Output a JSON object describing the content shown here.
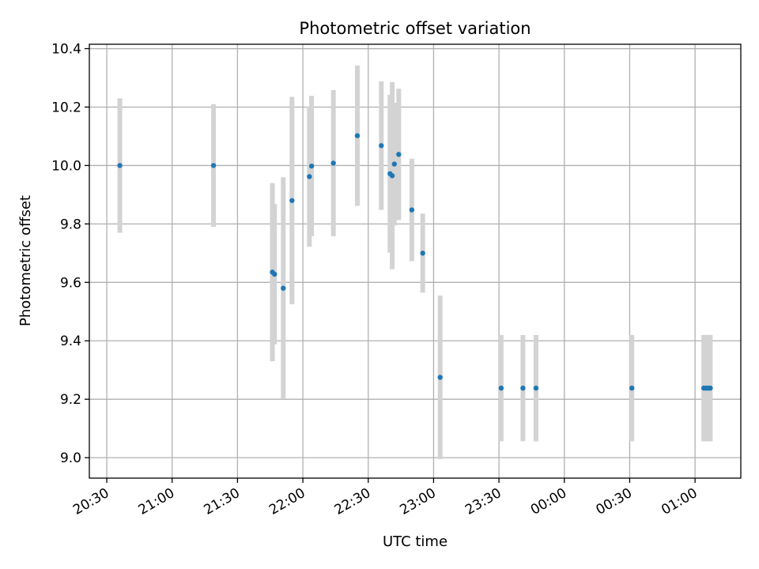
{
  "chart_data": {
    "type": "scatter",
    "title": "Photometric offset variation",
    "xlabel": "UTC time",
    "ylabel": "Photometric offset",
    "x_axis_kind": "time",
    "xlim": [
      "2000-01-01T20:22:00",
      "2000-01-02T01:21:00"
    ],
    "ylim": [
      8.93,
      10.415
    ],
    "grid": true,
    "x_ticks": [
      {
        "t": "2000-01-01T20:30:00",
        "label": "20:30"
      },
      {
        "t": "2000-01-01T21:00:00",
        "label": "21:00"
      },
      {
        "t": "2000-01-01T21:30:00",
        "label": "21:30"
      },
      {
        "t": "2000-01-01T22:00:00",
        "label": "22:00"
      },
      {
        "t": "2000-01-01T22:30:00",
        "label": "22:30"
      },
      {
        "t": "2000-01-01T23:00:00",
        "label": "23:00"
      },
      {
        "t": "2000-01-01T23:30:00",
        "label": "23:30"
      },
      {
        "t": "2000-01-02T00:00:00",
        "label": "00:00"
      },
      {
        "t": "2000-01-02T00:30:00",
        "label": "00:30"
      },
      {
        "t": "2000-01-02T01:00:00",
        "label": "01:00"
      }
    ],
    "y_ticks": [
      {
        "v": 9.0,
        "label": "9.0"
      },
      {
        "v": 9.2,
        "label": "9.2"
      },
      {
        "v": 9.4,
        "label": "9.4"
      },
      {
        "v": 9.6,
        "label": "9.6"
      },
      {
        "v": 9.8,
        "label": "9.8"
      },
      {
        "v": 10.0,
        "label": "10.0"
      },
      {
        "v": 10.2,
        "label": "10.2"
      },
      {
        "v": 10.4,
        "label": "10.4"
      }
    ],
    "marker_color": "#1f77b4",
    "errorbar_color": "#d3d3d3",
    "points": [
      {
        "t": "2000-01-01T20:36:00",
        "y": 10.0,
        "err": 0.23
      },
      {
        "t": "2000-01-01T21:19:00",
        "y": 10.0,
        "err": 0.21
      },
      {
        "t": "2000-01-01T21:46:00",
        "y": 9.635,
        "err": 0.305
      },
      {
        "t": "2000-01-01T21:47:00",
        "y": 9.628,
        "err": 0.24
      },
      {
        "t": "2000-01-01T21:51:00",
        "y": 9.58,
        "err": 0.38
      },
      {
        "t": "2000-01-01T21:55:00",
        "y": 9.88,
        "err": 0.355
      },
      {
        "t": "2000-01-01T22:03:00",
        "y": 9.962,
        "err": 0.24
      },
      {
        "t": "2000-01-01T22:04:00",
        "y": 9.998,
        "err": 0.24
      },
      {
        "t": "2000-01-01T22:14:00",
        "y": 10.008,
        "err": 0.25
      },
      {
        "t": "2000-01-01T22:25:00",
        "y": 10.102,
        "err": 0.24
      },
      {
        "t": "2000-01-01T22:36:00",
        "y": 10.068,
        "err": 0.22
      },
      {
        "t": "2000-01-01T22:40:00",
        "y": 9.972,
        "err": 0.27
      },
      {
        "t": "2000-01-01T22:41:00",
        "y": 9.965,
        "err": 0.32
      },
      {
        "t": "2000-01-01T22:42:00",
        "y": 10.005,
        "err": 0.21
      },
      {
        "t": "2000-01-01T22:44:00",
        "y": 10.038,
        "err": 0.225
      },
      {
        "t": "2000-01-01T22:50:00",
        "y": 9.848,
        "err": 0.175
      },
      {
        "t": "2000-01-01T22:55:00",
        "y": 9.7,
        "err": 0.135
      },
      {
        "t": "2000-01-01T23:03:00",
        "y": 9.275,
        "err": 0.28
      },
      {
        "t": "2000-01-01T23:31:00",
        "y": 9.238,
        "err": 0.182
      },
      {
        "t": "2000-01-01T23:41:00",
        "y": 9.238,
        "err": 0.182
      },
      {
        "t": "2000-01-01T23:47:00",
        "y": 9.238,
        "err": 0.182
      },
      {
        "t": "2000-01-02T00:31:00",
        "y": 9.238,
        "err": 0.182
      },
      {
        "t": "2000-01-02T01:04:00",
        "y": 9.238,
        "err": 0.182
      },
      {
        "t": "2000-01-02T01:05:00",
        "y": 9.238,
        "err": 0.182
      },
      {
        "t": "2000-01-02T01:06:00",
        "y": 9.238,
        "err": 0.182
      },
      {
        "t": "2000-01-02T01:07:00",
        "y": 9.238,
        "err": 0.182
      }
    ]
  }
}
